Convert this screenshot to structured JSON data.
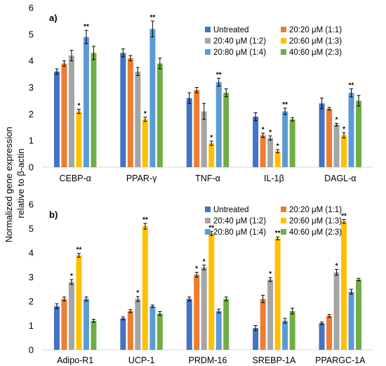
{
  "figure": {
    "ylabel_line1": "Normalized gene expression",
    "ylabel_line2": "relative to β-actin"
  },
  "chart_data": [
    {
      "type": "bar",
      "panel_label": "a)",
      "categories": [
        "CEBP-α",
        "PPAR-γ",
        "TNF-α",
        "IL-1β",
        "DAGL-α"
      ],
      "ylim": [
        0,
        6
      ],
      "yticks": [
        0,
        1,
        2,
        3,
        4,
        5,
        6
      ],
      "ylabel": "Normalized gene expression relative to β-actin",
      "legend_position": "top-right",
      "grid": false,
      "series": [
        {
          "name": "Untreated",
          "color": "#4472C4",
          "values": [
            3.6,
            4.3,
            2.6,
            1.9,
            2.4
          ],
          "errors": [
            0.1,
            0.15,
            0.2,
            0.15,
            0.2
          ],
          "marks": [
            "",
            "",
            "",
            "",
            ""
          ]
        },
        {
          "name": "20:20 μM (1:1)",
          "color": "#ED7D31",
          "values": [
            3.9,
            4.1,
            2.9,
            1.2,
            2.2
          ],
          "errors": [
            0.1,
            0.1,
            0.1,
            0.08,
            0.05
          ],
          "marks": [
            "",
            "",
            "",
            "*",
            ""
          ]
        },
        {
          "name": "20:40 μM (1:2)",
          "color": "#A5A5A5",
          "values": [
            4.2,
            3.6,
            2.1,
            1.1,
            1.6
          ],
          "errors": [
            0.2,
            0.15,
            0.3,
            0.08,
            0.05
          ],
          "marks": [
            "",
            "",
            "",
            "*",
            "*"
          ]
        },
        {
          "name": "20:60 μM (1:3)",
          "color": "#FFC000",
          "values": [
            2.1,
            1.8,
            0.9,
            0.6,
            1.2
          ],
          "errors": [
            0.08,
            0.08,
            0.08,
            0.06,
            0.1
          ],
          "marks": [
            "*",
            "*",
            "*",
            "*",
            "*"
          ]
        },
        {
          "name": "20:80 μM (1:4)",
          "color": "#5B9BD5",
          "values": [
            4.9,
            5.2,
            3.2,
            2.1,
            2.8
          ],
          "errors": [
            0.25,
            0.3,
            0.15,
            0.12,
            0.15
          ],
          "marks": [
            "**",
            "**",
            "**",
            "**",
            "**"
          ]
        },
        {
          "name": "40:60 μM (2:3)",
          "color": "#70AD47",
          "values": [
            4.3,
            3.9,
            2.8,
            1.8,
            2.5
          ],
          "errors": [
            0.25,
            0.2,
            0.15,
            0.06,
            0.2
          ],
          "marks": [
            "",
            "",
            "",
            "",
            ""
          ]
        }
      ]
    },
    {
      "type": "bar",
      "panel_label": "b)",
      "categories": [
        "Adipo-R1",
        "UCP-1",
        "PRDM-16",
        "SREBP-1A",
        "PPARGC-1A"
      ],
      "ylim": [
        0,
        6
      ],
      "yticks": [
        0,
        1,
        2,
        3,
        4,
        5,
        6
      ],
      "ylabel": "Normalized gene expression relative to β-actin",
      "legend_position": "top-right",
      "grid": false,
      "series": [
        {
          "name": "Untreated",
          "color": "#4472C4",
          "values": [
            1.8,
            1.3,
            2.1,
            0.9,
            1.1
          ],
          "errors": [
            0.1,
            0.06,
            0.08,
            0.1,
            0.05
          ],
          "marks": [
            "",
            "",
            "",
            "",
            ""
          ]
        },
        {
          "name": "20:20 μM (1:1)",
          "color": "#ED7D31",
          "values": [
            2.1,
            1.6,
            3.1,
            2.1,
            1.4
          ],
          "errors": [
            0.08,
            0.06,
            0.1,
            0.15,
            0.06
          ],
          "marks": [
            "",
            "",
            "*",
            "",
            ""
          ]
        },
        {
          "name": "20:40 μM (1:2)",
          "color": "#A5A5A5",
          "values": [
            2.8,
            2.1,
            3.4,
            2.9,
            3.2
          ],
          "errors": [
            0.1,
            0.1,
            0.1,
            0.08,
            0.12
          ],
          "marks": [
            "*",
            "*",
            "*",
            "*",
            "*"
          ]
        },
        {
          "name": "20:60 μM (1:3)",
          "color": "#FFC000",
          "values": [
            3.9,
            5.1,
            4.8,
            4.6,
            5.3
          ],
          "errors": [
            0.08,
            0.12,
            0.08,
            0.06,
            0.08
          ],
          "marks": [
            "**",
            "**",
            "**",
            "**",
            "**"
          ]
        },
        {
          "name": "20:80 μM (1:4)",
          "color": "#5B9BD5",
          "values": [
            2.1,
            1.8,
            1.6,
            1.2,
            2.4
          ],
          "errors": [
            0.08,
            0.05,
            0.08,
            0.1,
            0.1
          ],
          "marks": [
            "",
            "",
            "",
            "",
            ""
          ]
        },
        {
          "name": "40:60 μM (2:3)",
          "color": "#70AD47",
          "values": [
            1.2,
            1.5,
            2.1,
            1.6,
            2.9
          ],
          "errors": [
            0.06,
            0.08,
            0.08,
            0.12,
            0.05
          ],
          "marks": [
            "",
            "",
            "",
            "",
            ""
          ]
        }
      ]
    }
  ]
}
